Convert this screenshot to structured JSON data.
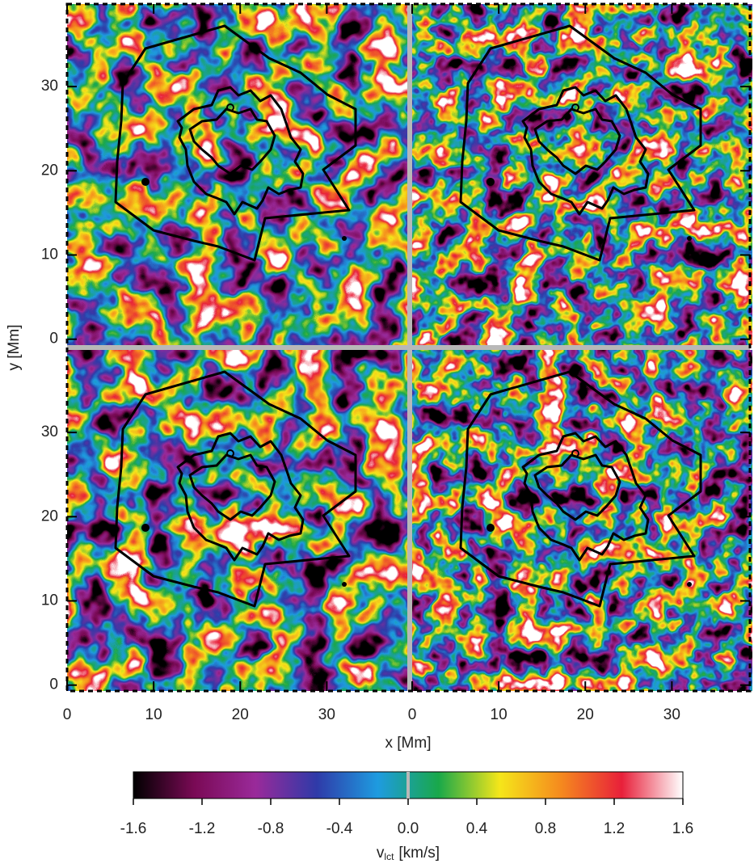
{
  "chart_data": {
    "type": "velocity-map-panels",
    "xlabel": "x [Mm]",
    "ylabel": "y [Mm]",
    "xlim": [
      0,
      39.3
    ],
    "ylim": [
      -0.7,
      39.8
    ],
    "xticks": [
      0,
      10,
      20,
      30
    ],
    "yticks": [
      0,
      10,
      20,
      30
    ],
    "colorbar": {
      "label": {
        "text": "v",
        "subscript": "lct",
        "unit": "[km/s]"
      },
      "lim": [
        -1.6,
        1.6
      ],
      "ticks": [
        -1.6,
        -1.2,
        -0.8,
        -0.4,
        {
          "value": 0,
          "label": "0.0"
        },
        0.4,
        0.8,
        1.2,
        1.6
      ],
      "colors": [
        "#000000",
        "#7a0a55",
        "#9a2a9a",
        "#2f3aa8",
        "#1e9be0",
        "#19a84a",
        "#f5e61a",
        "#f58a1e",
        "#e8203a",
        "#ffffff"
      ]
    }
  }
}
